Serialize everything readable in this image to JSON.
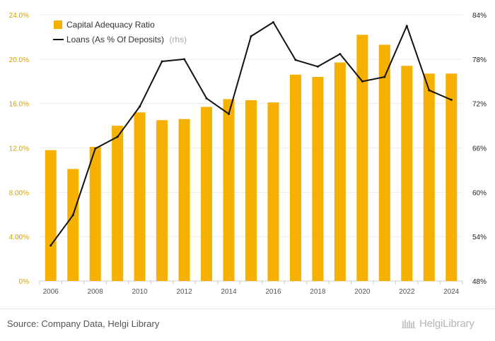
{
  "chart_data": {
    "type": "bar",
    "categories": [
      "2006",
      "2007",
      "2008",
      "2009",
      "2010",
      "2011",
      "2012",
      "2013",
      "2014",
      "2015",
      "2016",
      "2017",
      "2018",
      "2019",
      "2020",
      "2021",
      "2022",
      "2023",
      "2024"
    ],
    "x_tick_labels": [
      "2006",
      "2008",
      "2010",
      "2012",
      "2014",
      "2016",
      "2018",
      "2020",
      "2022",
      "2024"
    ],
    "series": [
      {
        "name": "Capital Adequacy Ratio",
        "type": "bar",
        "axis": "left",
        "color": "#f5b000",
        "values": [
          11.8,
          10.1,
          12.1,
          14.0,
          15.2,
          14.5,
          14.6,
          15.7,
          16.4,
          16.3,
          16.1,
          18.6,
          18.4,
          19.7,
          22.2,
          21.3,
          19.4,
          18.7,
          18.7
        ]
      },
      {
        "name": "Loans (As % Of Deposits)",
        "name_suffix": "(rhs)",
        "type": "line",
        "axis": "right",
        "color": "#111111",
        "values": [
          52.8,
          56.9,
          65.9,
          67.5,
          71.6,
          77.7,
          78.0,
          72.7,
          70.6,
          81.1,
          83.0,
          77.9,
          77.0,
          78.7,
          75.0,
          75.6,
          82.5,
          73.8,
          72.5
        ]
      }
    ],
    "y_left": {
      "min": 0,
      "max": 24,
      "ticks": [
        "0%",
        "4.00%",
        "8.00%",
        "12.0%",
        "16.0%",
        "20.0%",
        "24.0%"
      ]
    },
    "y_right": {
      "min": 48,
      "max": 84,
      "ticks": [
        "48%",
        "54%",
        "60%",
        "66%",
        "72%",
        "78%",
        "84%"
      ]
    },
    "grid": true,
    "legend_placement": "top-left"
  },
  "footer": {
    "source": "Source: Company Data, Helgi Library",
    "brand": "HelgiLibrary"
  }
}
